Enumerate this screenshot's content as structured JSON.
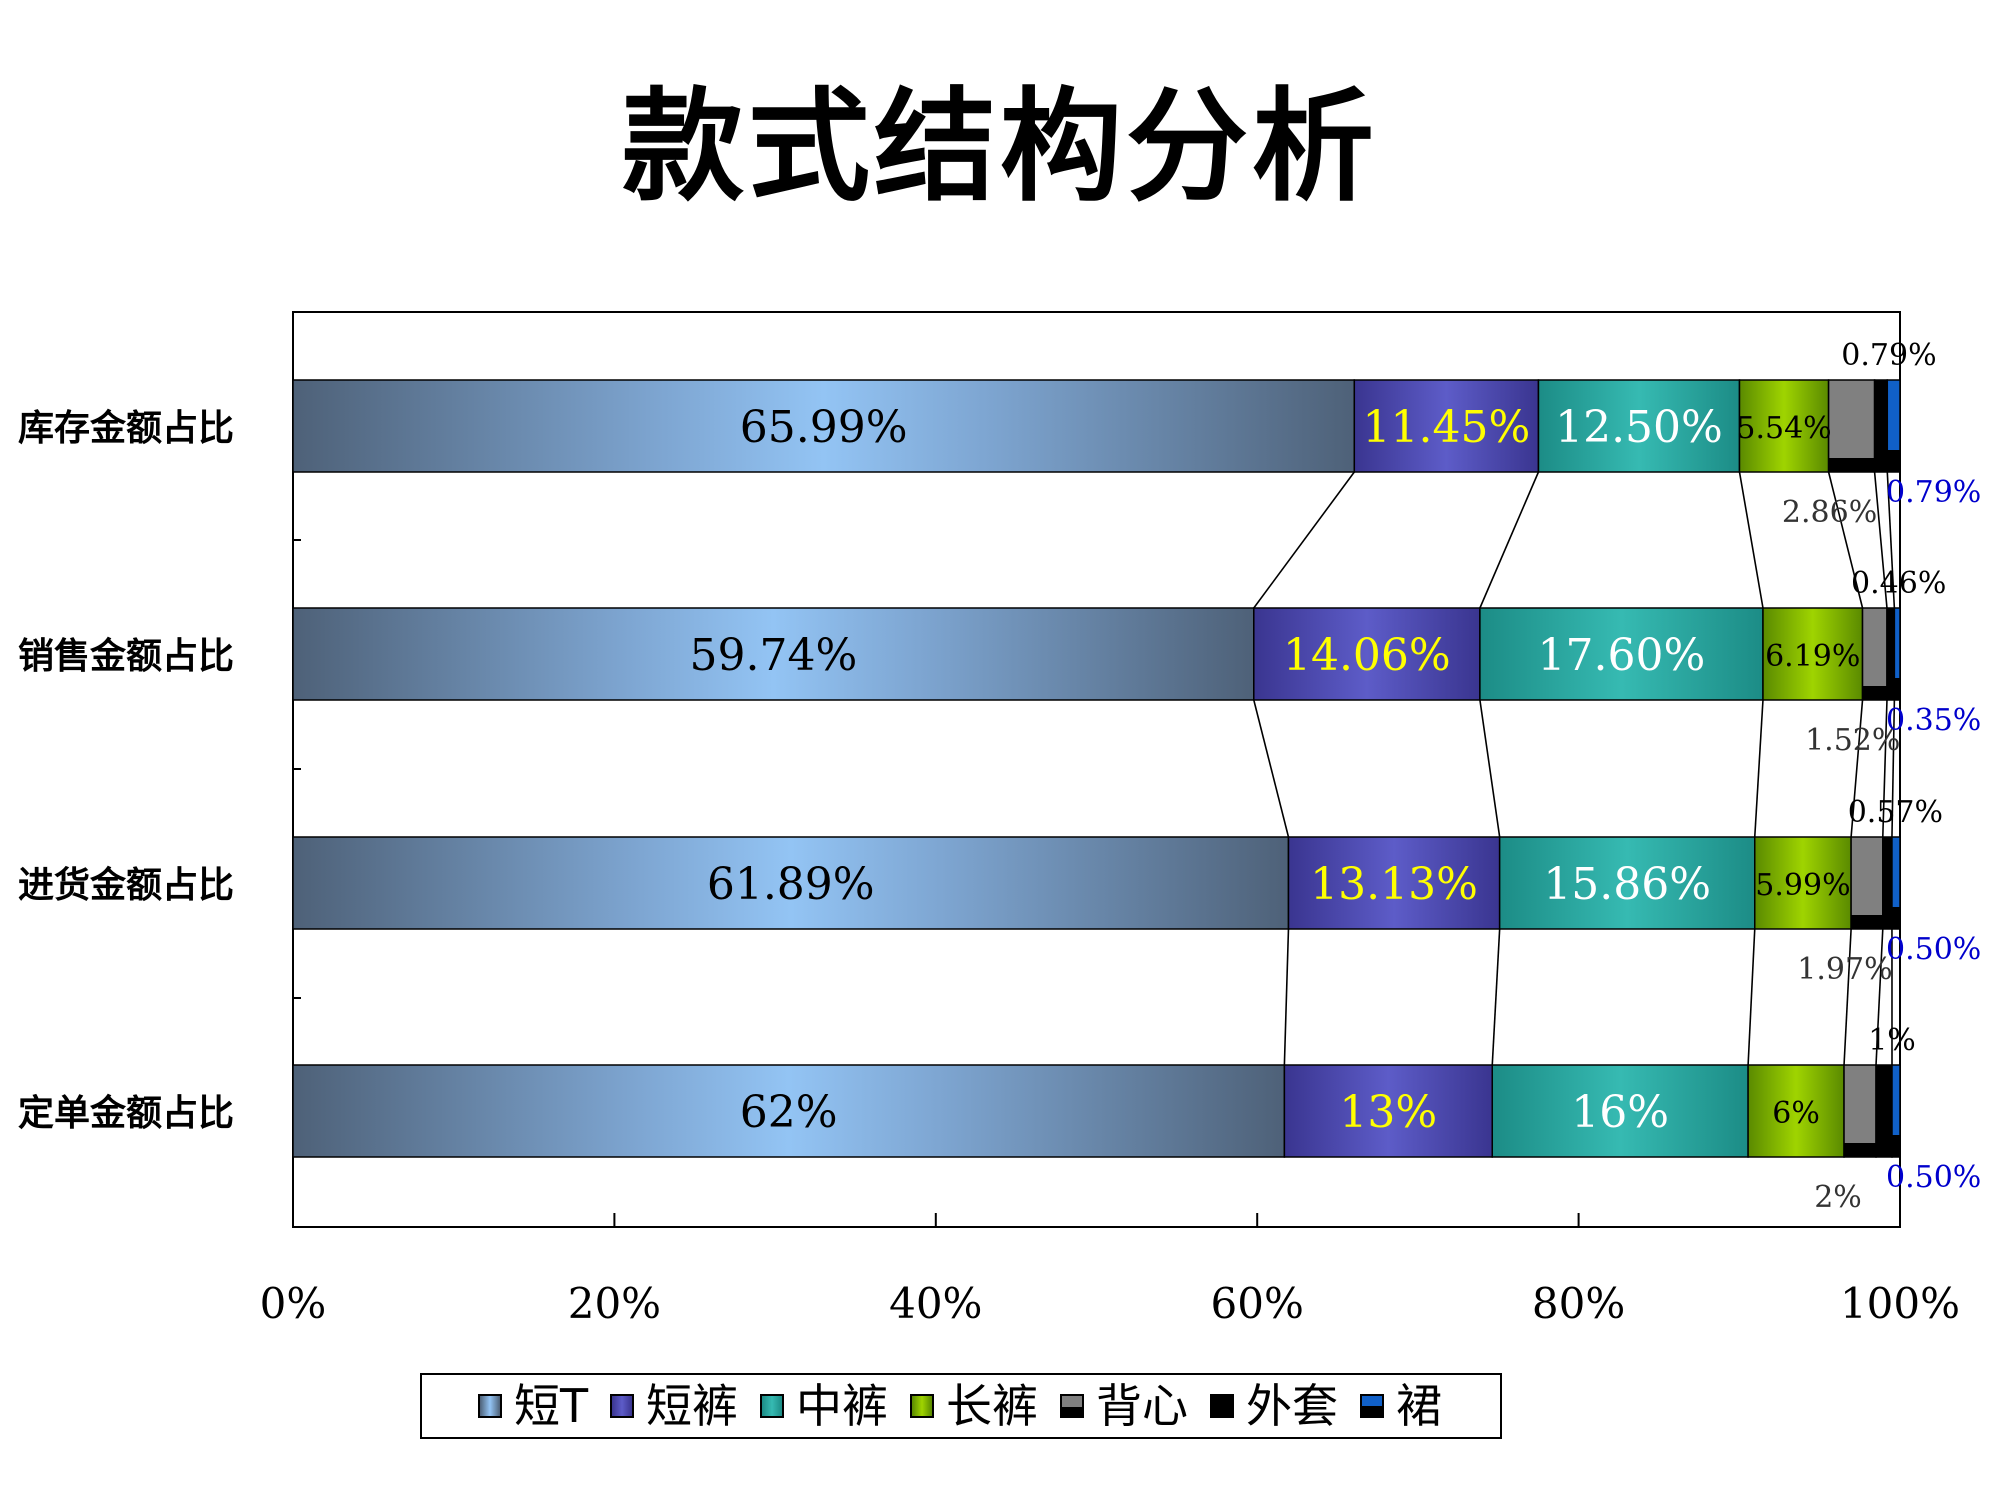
{
  "title": "款式结构分析",
  "chart_data": {
    "type": "bar",
    "stacked": true,
    "orientation": "horizontal",
    "percent_stacked": true,
    "categories": [
      "库存金额占比",
      "销售金额占比",
      "进货金额占比",
      "定单金额占比"
    ],
    "series": [
      {
        "name": "短T",
        "color": "#8fbfef",
        "values": [
          65.99,
          59.74,
          61.89,
          62
        ],
        "labels": [
          "65.99%",
          "59.74%",
          "61.89%",
          "62%"
        ],
        "label_color": "#000000"
      },
      {
        "name": "短裤",
        "color": "#4a48a8",
        "values": [
          11.45,
          14.06,
          13.13,
          13
        ],
        "labels": [
          "11.45%",
          "14.06%",
          "13.13%",
          "13%"
        ],
        "label_color": "#ffff00"
      },
      {
        "name": "中裤",
        "color": "#2aa8a0",
        "values": [
          12.5,
          17.6,
          15.86,
          16
        ],
        "labels": [
          "12.50%",
          "17.60%",
          "15.86%",
          "16%"
        ],
        "label_color": "#ffffff"
      },
      {
        "name": "长裤",
        "color": "#88c400",
        "values": [
          5.54,
          6.19,
          5.99,
          6
        ],
        "labels": [
          "5.54%",
          "6.19%",
          "5.99%",
          "6%"
        ],
        "label_color": "#000000"
      },
      {
        "name": "背心",
        "color": "#808080",
        "values": [
          2.86,
          1.52,
          1.97,
          2
        ],
        "labels": [
          "2.86%",
          "1.52%",
          "1.97%",
          "2%"
        ],
        "label_color": "#333333"
      },
      {
        "name": "外套",
        "color": "#000000",
        "values": [
          0.79,
          0.46,
          0.57,
          1
        ],
        "labels": [
          "0.79%",
          "0.46%",
          "0.57%",
          "1%"
        ],
        "label_color": "#000000"
      },
      {
        "name": "裙",
        "color": "#1060c8",
        "values": [
          0.79,
          0.35,
          0.5,
          0.5
        ],
        "labels": [
          "0.79%",
          "0.35%",
          "0.50%",
          "0.50%"
        ],
        "label_color": "#0000cc"
      }
    ],
    "x_ticks": [
      "0%",
      "20%",
      "40%",
      "60%",
      "80%",
      "100%"
    ],
    "xlim": [
      0,
      100
    ],
    "series_lines": true,
    "legend": "bottom",
    "grid": false
  }
}
